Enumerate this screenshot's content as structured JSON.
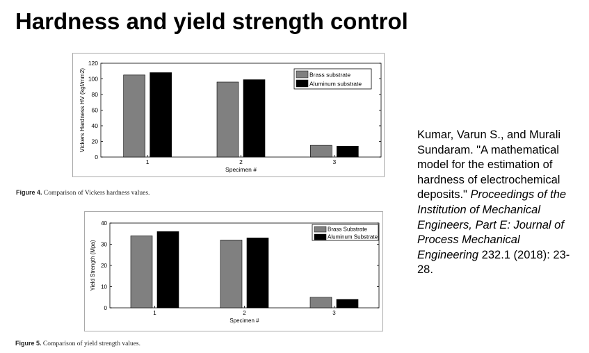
{
  "slide": {
    "title": "Hardness and yield strength control"
  },
  "citation": {
    "authors": "Kumar, Varun S., and Murali Sundaram. \"A mathematical model for the estimation of hardness of electrochemical deposits.\" ",
    "journal": "Proceedings of the Institution of Mechanical Engineers, Part E: Journal of Process Mechanical Engineering",
    "details": " 232.1 (2018): 23-28."
  },
  "captions": [
    {
      "label": "Figure 4.",
      "text": " Comparison of Vickers hardness values."
    },
    {
      "label": "Figure 5.",
      "text": " Comparison of yield strength values."
    }
  ],
  "colors": {
    "series_gray": "#808080",
    "series_black": "#000000"
  },
  "chart_data": [
    {
      "type": "bar",
      "categories": [
        "1",
        "2",
        "3"
      ],
      "series": [
        {
          "name": "Brass substrate",
          "values": [
            105,
            96,
            15
          ]
        },
        {
          "name": "Aluminum substrate",
          "values": [
            108,
            99,
            14
          ]
        }
      ],
      "xlabel": "Specimen #",
      "ylabel": "Vickers Hardness HV (kgf/mm2)",
      "ylim": [
        0,
        120
      ],
      "yticks": [
        "0",
        "20",
        "40",
        "60",
        "80",
        "100",
        "120"
      ],
      "legend": "top-right",
      "grid": false
    },
    {
      "type": "bar",
      "categories": [
        "1",
        "2",
        "3"
      ],
      "series": [
        {
          "name": "Brass Substrate",
          "values": [
            34,
            32,
            5
          ]
        },
        {
          "name": "Aluminum Substrate",
          "values": [
            36,
            33,
            4
          ]
        }
      ],
      "xlabel": "Specimen #",
      "ylabel": "Yield Strength (Mpa)",
      "ylim": [
        0,
        40
      ],
      "yticks": [
        "0",
        "10",
        "20",
        "30",
        "40"
      ],
      "legend": "top-right",
      "grid": false
    }
  ]
}
